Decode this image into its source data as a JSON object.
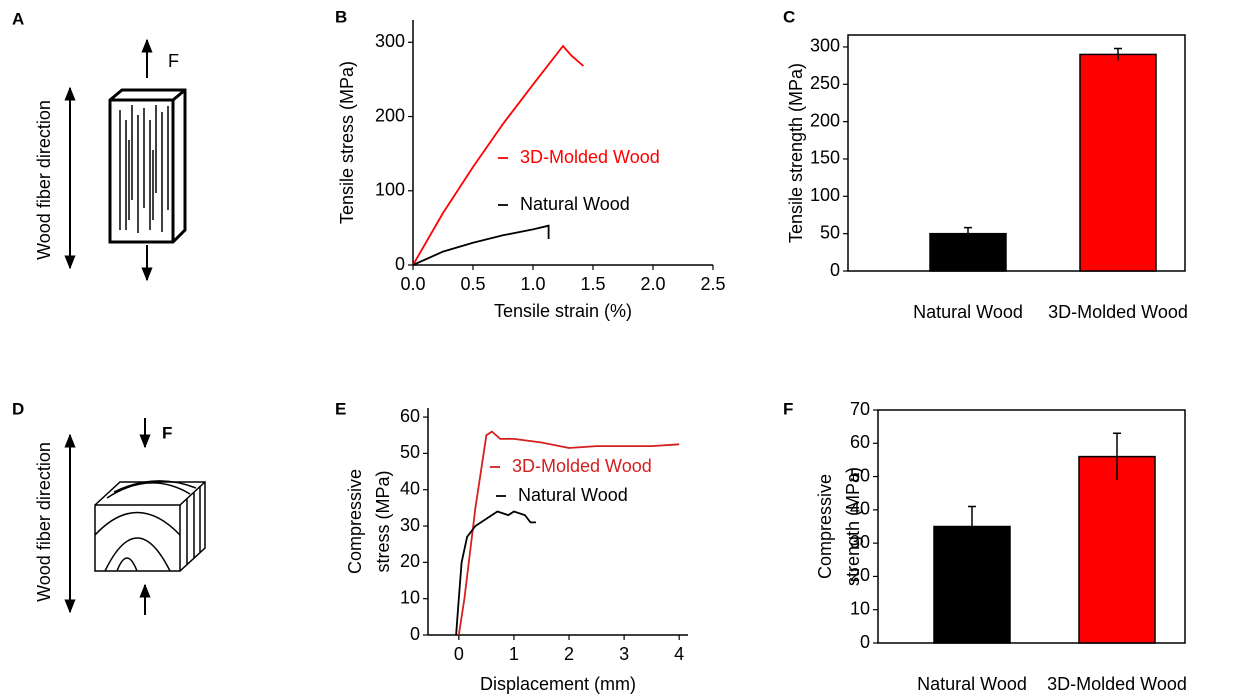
{
  "diagrams": [
    {
      "panel": "A",
      "axis_label": "Wood fiber direction",
      "force_label": "F"
    },
    {
      "panel": "D",
      "axis_label": "Wood fiber direction",
      "force_label": "F"
    }
  ],
  "chart_data": [
    {
      "type": "line",
      "panel": "B",
      "xlabel": "Tensile strain (%)",
      "ylabel": "Tensile stress (MPa)",
      "xlim": [
        0,
        2.5
      ],
      "ylim": [
        0,
        330
      ],
      "xticks": [
        {
          "value": 0,
          "label": "0.0"
        },
        0.5,
        {
          "value": 1,
          "label": "1.0"
        },
        1.5,
        {
          "value": 2,
          "label": "2.0"
        },
        2.5
      ],
      "yticks": [
        0,
        100,
        200,
        300
      ],
      "grid": false,
      "frame": false,
      "series": [
        {
          "name": "3D-Molded Wood",
          "color": "#ff0000",
          "x": [
            0,
            0.25,
            0.5,
            0.75,
            1.0,
            1.25,
            1.32,
            1.42
          ],
          "values": [
            0,
            70,
            132,
            190,
            243,
            295,
            282,
            268
          ]
        },
        {
          "name": "Natural Wood",
          "color": "#000000",
          "x": [
            0,
            0.25,
            0.5,
            0.75,
            1.0,
            1.13,
            1.13
          ],
          "values": [
            0,
            18,
            30,
            40,
            48,
            53,
            35
          ]
        }
      ]
    },
    {
      "type": "bar",
      "panel": "C",
      "ylabel": "Tensile strength (MPa)",
      "ylim": [
        0,
        316
      ],
      "yticks": [
        0,
        50,
        100,
        150,
        200,
        250,
        300
      ],
      "grid": false,
      "frame": true,
      "categories": [
        "Natural Wood",
        "3D-Molded Wood"
      ],
      "values": [
        50,
        290
      ],
      "errors": [
        8,
        8
      ],
      "colors": [
        "#000000",
        "#ff0000"
      ]
    },
    {
      "type": "line",
      "panel": "E",
      "xlabel": "Displacement (mm)",
      "ylabel": [
        "Compressive",
        "stress (MPa)"
      ],
      "xlim": [
        -0.56,
        4.16
      ],
      "ylim": [
        0,
        62.5
      ],
      "xticks": [
        0,
        1,
        2,
        3,
        4
      ],
      "yticks": [
        0,
        10,
        20,
        30,
        40,
        50,
        60
      ],
      "grid": false,
      "frame": false,
      "series": [
        {
          "name": "3D-Molded Wood",
          "color": "#d42020",
          "x": [
            0,
            0.1,
            0.3,
            0.5,
            0.6,
            0.75,
            1,
            1.5,
            2,
            2.5,
            3,
            3.5,
            4
          ],
          "values": [
            0,
            10,
            35,
            55,
            56,
            54,
            54,
            53,
            51.5,
            52,
            52,
            52,
            52.5
          ]
        },
        {
          "name": "Natural Wood",
          "color": "#000000",
          "x": [
            -0.05,
            0,
            0.05,
            0.15,
            0.3,
            0.5,
            0.7,
            0.9,
            1.0,
            1.2,
            1.3,
            1.4
          ],
          "values": [
            0,
            10,
            20,
            27,
            30,
            32,
            34,
            33,
            34,
            33,
            31,
            31
          ]
        }
      ]
    },
    {
      "type": "bar",
      "panel": "F",
      "ylabel": [
        "Compressive",
        "strength (MPa)"
      ],
      "ylim": [
        0,
        70
      ],
      "yticks": [
        0,
        10,
        20,
        30,
        40,
        50,
        60,
        70
      ],
      "grid": false,
      "frame": true,
      "categories": [
        "Natural Wood",
        "3D-Molded Wood"
      ],
      "values": [
        35,
        56
      ],
      "errors": [
        6,
        7
      ],
      "colors": [
        "#000000",
        "#ff0000"
      ]
    }
  ]
}
